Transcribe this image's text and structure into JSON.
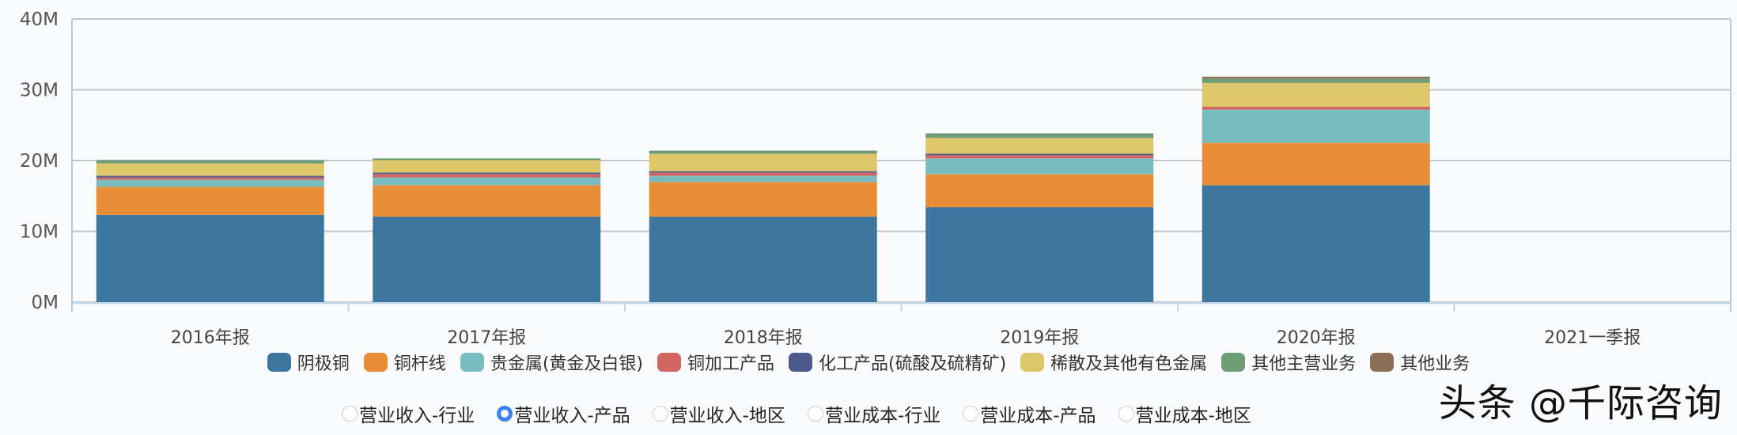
{
  "chart_data": {
    "type": "bar",
    "stacked": true,
    "categories": [
      "2016年报",
      "2017年报",
      "2018年报",
      "2019年报",
      "2020年报",
      "2021一季报"
    ],
    "yticks": [
      "0M",
      "10M",
      "20M",
      "30M",
      "40M"
    ],
    "ylim": [
      0,
      40
    ],
    "yunit": "M",
    "grid": true,
    "legend_position": "bottom",
    "series": [
      {
        "name": "阴极铜",
        "color": "#3d769e",
        "values": [
          12.3,
          12.07,
          12.07,
          13.4,
          16.5,
          null
        ]
      },
      {
        "name": "铜杆线",
        "color": "#e78d38",
        "values": [
          4.0,
          4.43,
          4.89,
          4.67,
          6.0,
          null
        ]
      },
      {
        "name": "贵金属(黄金及白银)",
        "color": "#79bcbf",
        "values": [
          1.0,
          1.1,
          0.89,
          2.23,
          4.7,
          null
        ]
      },
      {
        "name": "铜加工产品",
        "color": "#d26462",
        "values": [
          0.3,
          0.47,
          0.45,
          0.44,
          0.4,
          null
        ]
      },
      {
        "name": "化工产品(硫酸及硫精矿)",
        "color": "#4d5a8c",
        "values": [
          0.25,
          0.23,
          0.2,
          0.22,
          0.0,
          null
        ]
      },
      {
        "name": "稀散及其他有色金属",
        "color": "#dec66a",
        "values": [
          1.75,
          1.77,
          2.46,
          2.24,
          3.36,
          null
        ]
      },
      {
        "name": "其他主营业务",
        "color": "#6e9c76",
        "values": [
          0.47,
          0.23,
          0.44,
          0.65,
          0.64,
          null
        ]
      },
      {
        "name": "其他业务",
        "color": "#8a6e55",
        "values": [
          0,
          0,
          0,
          0,
          0.25,
          null
        ]
      }
    ]
  },
  "radio_options": [
    {
      "label": "营业收入-行业",
      "selected": false
    },
    {
      "label": "营业收入-产品",
      "selected": true
    },
    {
      "label": "营业收入-地区",
      "selected": false
    },
    {
      "label": "营业成本-行业",
      "selected": false
    },
    {
      "label": "营业成本-产品",
      "selected": false
    },
    {
      "label": "营业成本-地区",
      "selected": false
    }
  ],
  "watermark": "头条 @千际咨询"
}
